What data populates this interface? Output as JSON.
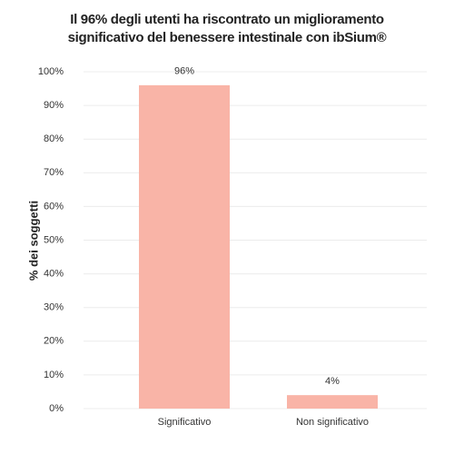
{
  "chart_data": {
    "type": "bar",
    "title": "Il 96% degli utenti ha riscontrato un miglioramento significativo del benessere intestinale con ibSium®",
    "y_label": "% dei soggetti",
    "categories": [
      "Significativo",
      "Non significativo"
    ],
    "values": [
      96,
      4
    ],
    "value_labels": [
      "96%",
      "4%"
    ],
    "color": "#f9b4a7",
    "ylim": [
      0,
      100
    ],
    "yticks": [
      {
        "value": 0,
        "label": "0%"
      },
      {
        "value": 10,
        "label": "10%"
      },
      {
        "value": 20,
        "label": "20%"
      },
      {
        "value": 30,
        "label": "30%"
      },
      {
        "value": 40,
        "label": "40%"
      },
      {
        "value": 50,
        "label": "50%"
      },
      {
        "value": 60,
        "label": "60%"
      },
      {
        "value": 70,
        "label": "70%"
      },
      {
        "value": 80,
        "label": "80%"
      },
      {
        "value": 90,
        "label": "90%"
      },
      {
        "value": 100,
        "label": "100%"
      }
    ],
    "grid": true
  }
}
